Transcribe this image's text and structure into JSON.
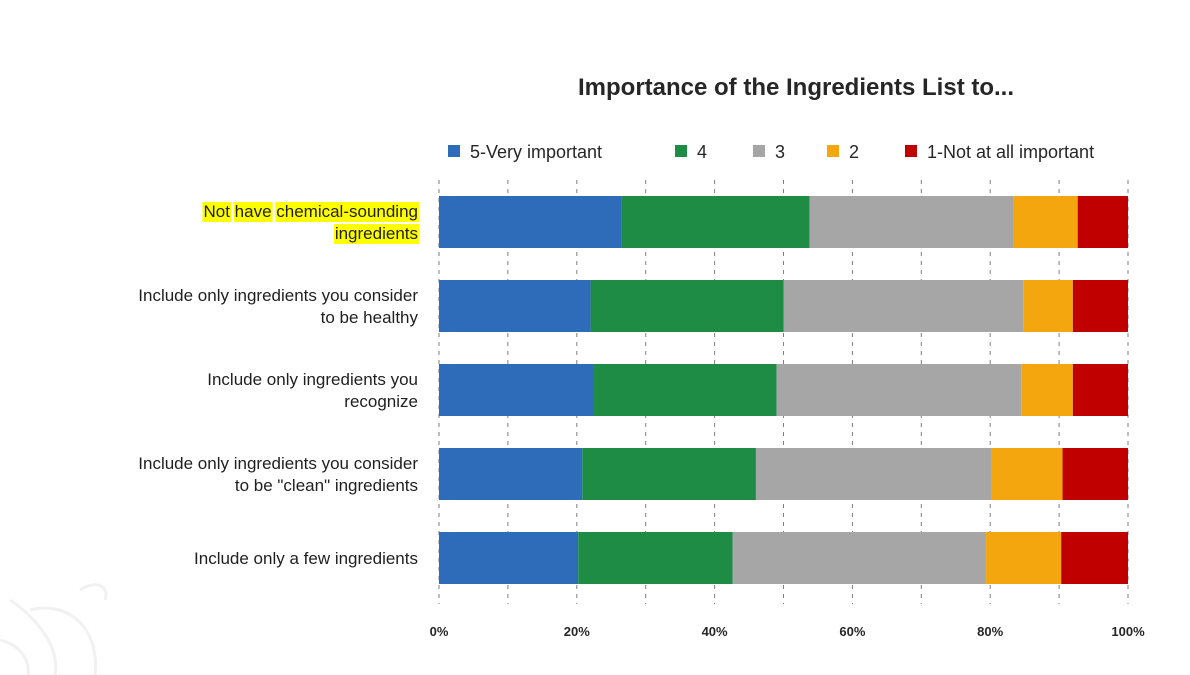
{
  "chart_data": {
    "type": "bar",
    "orientation": "horizontal",
    "stacked": true,
    "title": "Importance of the Ingredients List to...",
    "categories": [
      [
        "Not have chemical-sounding",
        "ingredients"
      ],
      [
        "Include only ingredients you consider",
        "to be healthy"
      ],
      [
        "Include only ingredients you",
        "recognize"
      ],
      [
        "Include only ingredients you consider",
        "to be \"clean\" ingredients"
      ],
      [
        "Include only a few ingredients"
      ]
    ],
    "highlighted_words": [
      "Not",
      "have",
      "chemical-sounding",
      "ingredients"
    ],
    "series": [
      {
        "name": "5-Very important",
        "color": "#2e6bb8",
        "values": [
          26.5,
          22.0,
          22.5,
          20.8,
          20.2
        ]
      },
      {
        "name": "4",
        "color": "#1f8c45",
        "values": [
          27.3,
          28.0,
          26.5,
          25.2,
          22.4
        ]
      },
      {
        "name": "3",
        "color": "#a6a6a6",
        "values": [
          29.6,
          34.8,
          35.5,
          34.2,
          36.8
        ]
      },
      {
        "name": "2",
        "color": "#f3a60e",
        "values": [
          9.3,
          7.2,
          7.5,
          10.3,
          10.9
        ]
      },
      {
        "name": "1-Not at all important",
        "color": "#c00000",
        "values": [
          7.3,
          8.0,
          8.0,
          9.5,
          9.7
        ]
      }
    ],
    "xlim": [
      0,
      100
    ],
    "xticks": [
      "0%",
      "20%",
      "40%",
      "60%",
      "80%",
      "100%"
    ],
    "grid": true,
    "legend": "top"
  }
}
